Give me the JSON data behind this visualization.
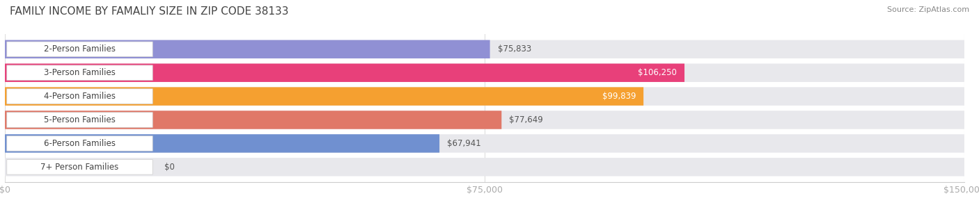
{
  "title": "FAMILY INCOME BY FAMALIY SIZE IN ZIP CODE 38133",
  "source": "Source: ZipAtlas.com",
  "categories": [
    "2-Person Families",
    "3-Person Families",
    "4-Person Families",
    "5-Person Families",
    "6-Person Families",
    "7+ Person Families"
  ],
  "values": [
    75833,
    106250,
    99839,
    77649,
    67941,
    0
  ],
  "bar_colors": [
    "#9090d4",
    "#e8407a",
    "#f5a030",
    "#e07868",
    "#7090d0",
    "#c0a0c8"
  ],
  "label_colors": [
    "#555555",
    "#ffffff",
    "#ffffff",
    "#555555",
    "#555555",
    "#555555"
  ],
  "xlim": [
    0,
    150000
  ],
  "xticks": [
    0,
    75000,
    150000
  ],
  "xtick_labels": [
    "$0",
    "$75,000",
    "$150,000"
  ],
  "value_labels": [
    "$75,833",
    "$106,250",
    "$99,839",
    "$77,649",
    "$67,941",
    "$0"
  ],
  "fig_bg_color": "#ffffff",
  "bar_height": 0.78,
  "title_fontsize": 11,
  "tick_fontsize": 9,
  "label_fontsize": 8.5,
  "value_fontsize": 8.5
}
